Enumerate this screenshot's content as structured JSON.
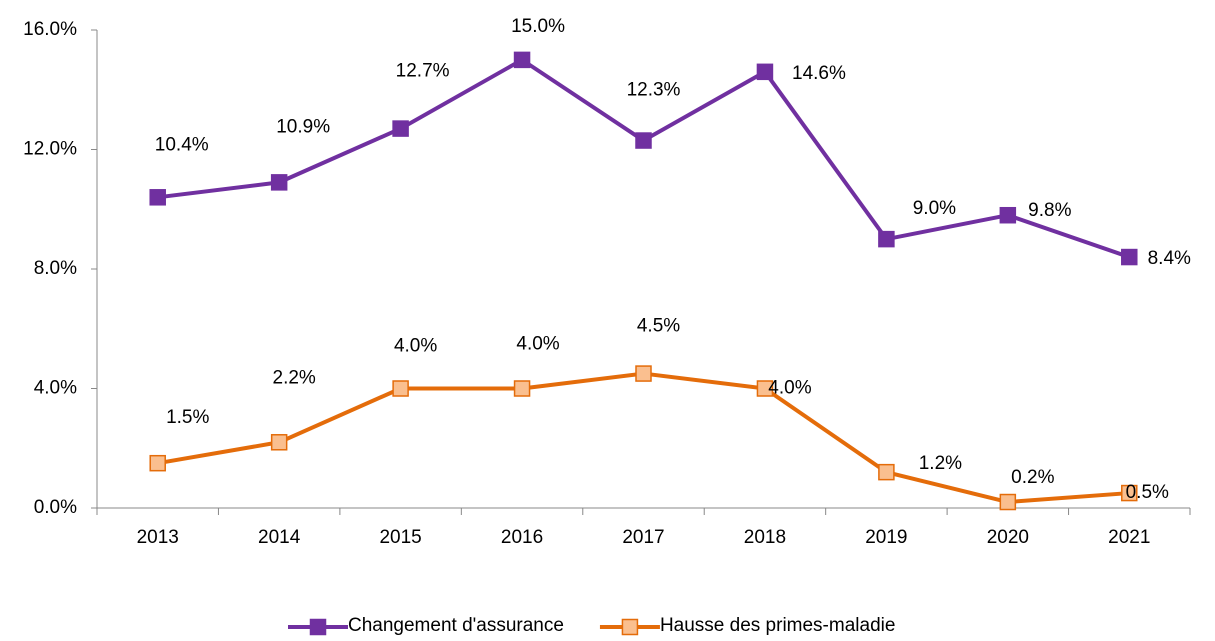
{
  "chart_data": {
    "type": "line",
    "categories": [
      "2013",
      "2014",
      "2015",
      "2016",
      "2017",
      "2018",
      "2019",
      "2020",
      "2021"
    ],
    "series": [
      {
        "name": "Changement d'assurance",
        "color": "#7030a0",
        "marker_fill": "#7030a0",
        "values": [
          10.4,
          10.9,
          12.7,
          15.0,
          12.3,
          14.6,
          9.0,
          9.8,
          8.4
        ],
        "value_labels": [
          "10.4%",
          "10.9%",
          "12.7%",
          "15.0%",
          "12.3%",
          "14.6%",
          "9.0%",
          "9.8%",
          "8.4%"
        ]
      },
      {
        "name": "Hausse des primes-maladie",
        "color": "#e46c0a",
        "marker_fill": "#fabf8f",
        "values": [
          1.5,
          2.2,
          4.0,
          4.0,
          4.5,
          4.0,
          1.2,
          0.2,
          0.5
        ],
        "value_labels": [
          "1.5%",
          "2.2%",
          "4.0%",
          "4.0%",
          "4.5%",
          "4.0%",
          "1.2%",
          "0.2%",
          "0.5%"
        ]
      }
    ],
    "ylim": [
      0,
      16
    ],
    "yticks": [
      {
        "value": 0,
        "label": "0.0%"
      },
      {
        "value": 4,
        "label": "4.0%"
      },
      {
        "value": 8,
        "label": "8.0%"
      },
      {
        "value": 12,
        "label": "12.0%"
      },
      {
        "value": 16,
        "label": "16.0%"
      }
    ],
    "legend": "bottom"
  }
}
